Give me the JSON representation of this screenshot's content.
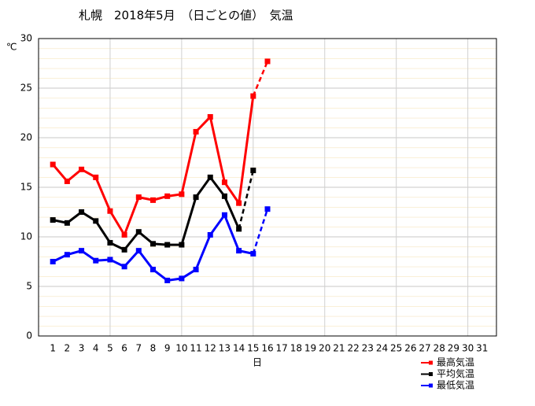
{
  "chart_data": {
    "type": "line",
    "title": "札幌　2018年5月　（日ごとの値）　気温",
    "y_unit": "℃",
    "x_label": "日",
    "x": [
      1,
      2,
      3,
      4,
      5,
      6,
      7,
      8,
      9,
      10,
      11,
      12,
      13,
      14,
      15,
      16,
      17,
      18,
      19,
      20,
      21,
      22,
      23,
      24,
      25,
      26,
      27,
      28,
      29,
      30,
      31
    ],
    "xlim": [
      0,
      32
    ],
    "xticks": [
      1,
      2,
      3,
      4,
      5,
      6,
      7,
      8,
      9,
      10,
      11,
      12,
      13,
      14,
      15,
      16,
      17,
      18,
      19,
      20,
      21,
      22,
      23,
      24,
      25,
      26,
      27,
      28,
      29,
      30,
      31
    ],
    "xgrid": [
      5,
      10,
      15,
      20,
      25,
      30
    ],
    "ylim": [
      0,
      30
    ],
    "yticks": [
      0,
      5,
      10,
      15,
      20,
      25,
      30
    ],
    "grid": true,
    "dashed_last_segment": true,
    "legend": "bottom-right",
    "series": [
      {
        "name": "最高気温",
        "color": "#ff0000",
        "values": [
          17.3,
          15.6,
          16.8,
          16.0,
          12.6,
          10.2,
          14.0,
          13.7,
          14.1,
          14.3,
          20.6,
          22.1,
          15.5,
          13.4,
          24.2,
          27.7,
          null,
          null,
          null,
          null,
          null,
          null,
          null,
          null,
          null,
          null,
          null,
          null,
          null,
          null,
          null
        ]
      },
      {
        "name": "平均気温",
        "color": "#000000",
        "values": [
          11.7,
          11.4,
          12.5,
          11.6,
          9.4,
          8.7,
          10.5,
          9.3,
          9.2,
          9.2,
          14.0,
          16.0,
          14.1,
          10.8,
          16.7,
          null,
          null,
          null,
          null,
          null,
          null,
          null,
          null,
          null,
          null,
          null,
          null,
          null,
          null,
          null,
          null
        ]
      },
      {
        "name": "最低気温",
        "color": "#0000ff",
        "values": [
          7.5,
          8.2,
          8.6,
          7.6,
          7.7,
          7.0,
          8.6,
          6.7,
          5.6,
          5.8,
          6.7,
          10.2,
          12.2,
          8.6,
          8.3,
          12.8,
          null,
          null,
          null,
          null,
          null,
          null,
          null,
          null,
          null,
          null,
          null,
          null,
          null,
          null,
          null
        ]
      }
    ]
  }
}
